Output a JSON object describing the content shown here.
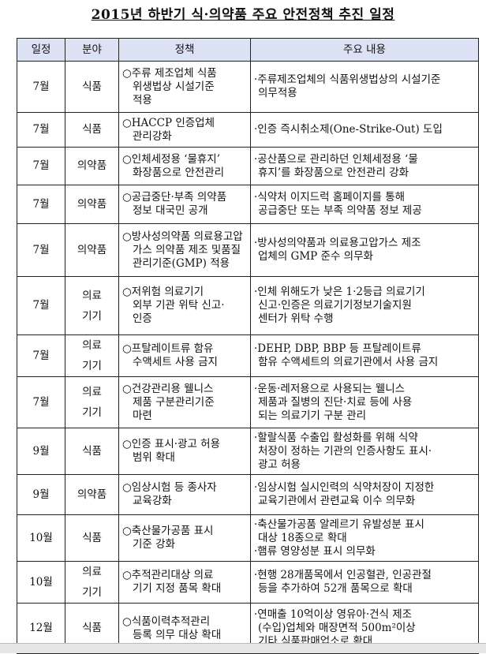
{
  "title": "2015년 하반기 식·의약품 주요 안전정책 추진 일정",
  "headers": [
    "일정",
    "분야",
    "정책",
    "주요 내용"
  ],
  "rows": [
    {
      "date": "7월",
      "field": [
        "식품"
      ],
      "policy": [
        "○주류 제조업체 식품",
        "위생법상 시설기준",
        "적용"
      ],
      "content": [
        "·주류제조업체의 식품위생법상의 시설기준",
        "의무적용"
      ]
    },
    {
      "date": "7월",
      "field": [
        "식품"
      ],
      "policy": [
        "○HACCP 인증업체",
        "관리강화"
      ],
      "content": [
        "·인증 즉시취소제(One-Strike-Out) 도입"
      ]
    },
    {
      "date": "7월",
      "field": [
        "의약품"
      ],
      "policy": [
        "○인체세정용 ‘물휴지’",
        "화장품으로 안전관리"
      ],
      "content": [
        "·공산품으로 관리하던 인체세정용 ‘물",
        "휴지’를 화장품으로 안전관리 강화"
      ]
    },
    {
      "date": "7월",
      "field": [
        "의약품"
      ],
      "policy": [
        "○공급중단·부족 의약품",
        "정보 대국민 공개"
      ],
      "content": [
        "·식약처 이지드럭 홈페이지를 통해",
        "공급중단 또는 부족 의약품 정보 제공"
      ]
    },
    {
      "date": "7월",
      "field": [
        "의약품"
      ],
      "policy": [
        "○방사성의약품 의료용고압",
        "가스 의약품 제조 및품질",
        "관리기준(GMP) 적용"
      ],
      "content": [
        "·방사성의약품과 의료용고압가스 제조",
        "업체의 GMP 준수 의무화"
      ]
    },
    {
      "date": "7월",
      "field": [
        "의료",
        "기기"
      ],
      "policy": [
        "○저위험 의료기기",
        "외부 기관 위탁 신고·",
        "인증"
      ],
      "content": [
        "·인체 위해도가 낮은 1·2등급 의료기기",
        "신고·인증은 의료기기정보기술지원",
        "센터가 위탁 수행"
      ]
    },
    {
      "date": "7월",
      "field": [
        "의료",
        "기기"
      ],
      "policy": [
        "○프탈레이트류 함유",
        "수액세트 사용 금지"
      ],
      "content": [
        "·DEHP, DBP, BBP 등 프탈레이트류",
        "함유 수액세트의 의료기관에서 사용 금지"
      ]
    },
    {
      "date": "7월",
      "field": [
        "의료",
        "기기"
      ],
      "policy": [
        "○건강관리용 웰니스",
        "제품 구분관리기준",
        "마련"
      ],
      "content": [
        "·운동·레저용으로 사용되는 웰니스",
        "제품과 질병의 진단·치료 등에 사용",
        "되는 의료기기 구분 관리"
      ]
    },
    {
      "date": "9월",
      "field": [
        "식품"
      ],
      "policy": [
        "○인증 표시·광고 허용",
        "범위 확대"
      ],
      "content": [
        "·할랄식품 수출입 활성화를 위해 식약",
        "처장이 정하는 기관의 인증사항도 표시·",
        "광고 허용"
      ]
    },
    {
      "date": "9월",
      "field": [
        "의약품"
      ],
      "policy": [
        "○임상시험 등 종사자",
        "교육강화"
      ],
      "content": [
        "·임상시험 실시인력의 식약처장이 지정한",
        "교육기관에서 관련교육 이수 의무화"
      ]
    },
    {
      "date": "10월",
      "field": [
        "식품"
      ],
      "policy": [
        "○축산물가공품 표시",
        "기준 강화"
      ],
      "content": [
        "·축산물가공품 알레르기 유발성분 표시",
        "대상 18종으로 확대",
        "·햄류 영양성분 표시 의무화"
      ]
    },
    {
      "date": "10월",
      "field": [
        "의료",
        "기기"
      ],
      "policy": [
        "○추적관리대상 의료",
        "기기 지정 품목 확대"
      ],
      "content": [
        "·현행 28개품목에서 인공혈관, 인공관절",
        "등을 추가하여 52개 품목으로 확대"
      ]
    },
    {
      "date": "12월",
      "field": [
        "식품"
      ],
      "policy": [
        "○식품이력추적관리",
        "등록 의무 대상 확대"
      ],
      "content": [
        "·연매출 10억이상 영유아·건식 제조",
        "(수입)업체와 매장면적 500m²이상",
        "기타 식품판매업소로 확대"
      ]
    }
  ],
  "colors": {
    "header_bg": "#dbe2f4",
    "border": "#222222"
  }
}
